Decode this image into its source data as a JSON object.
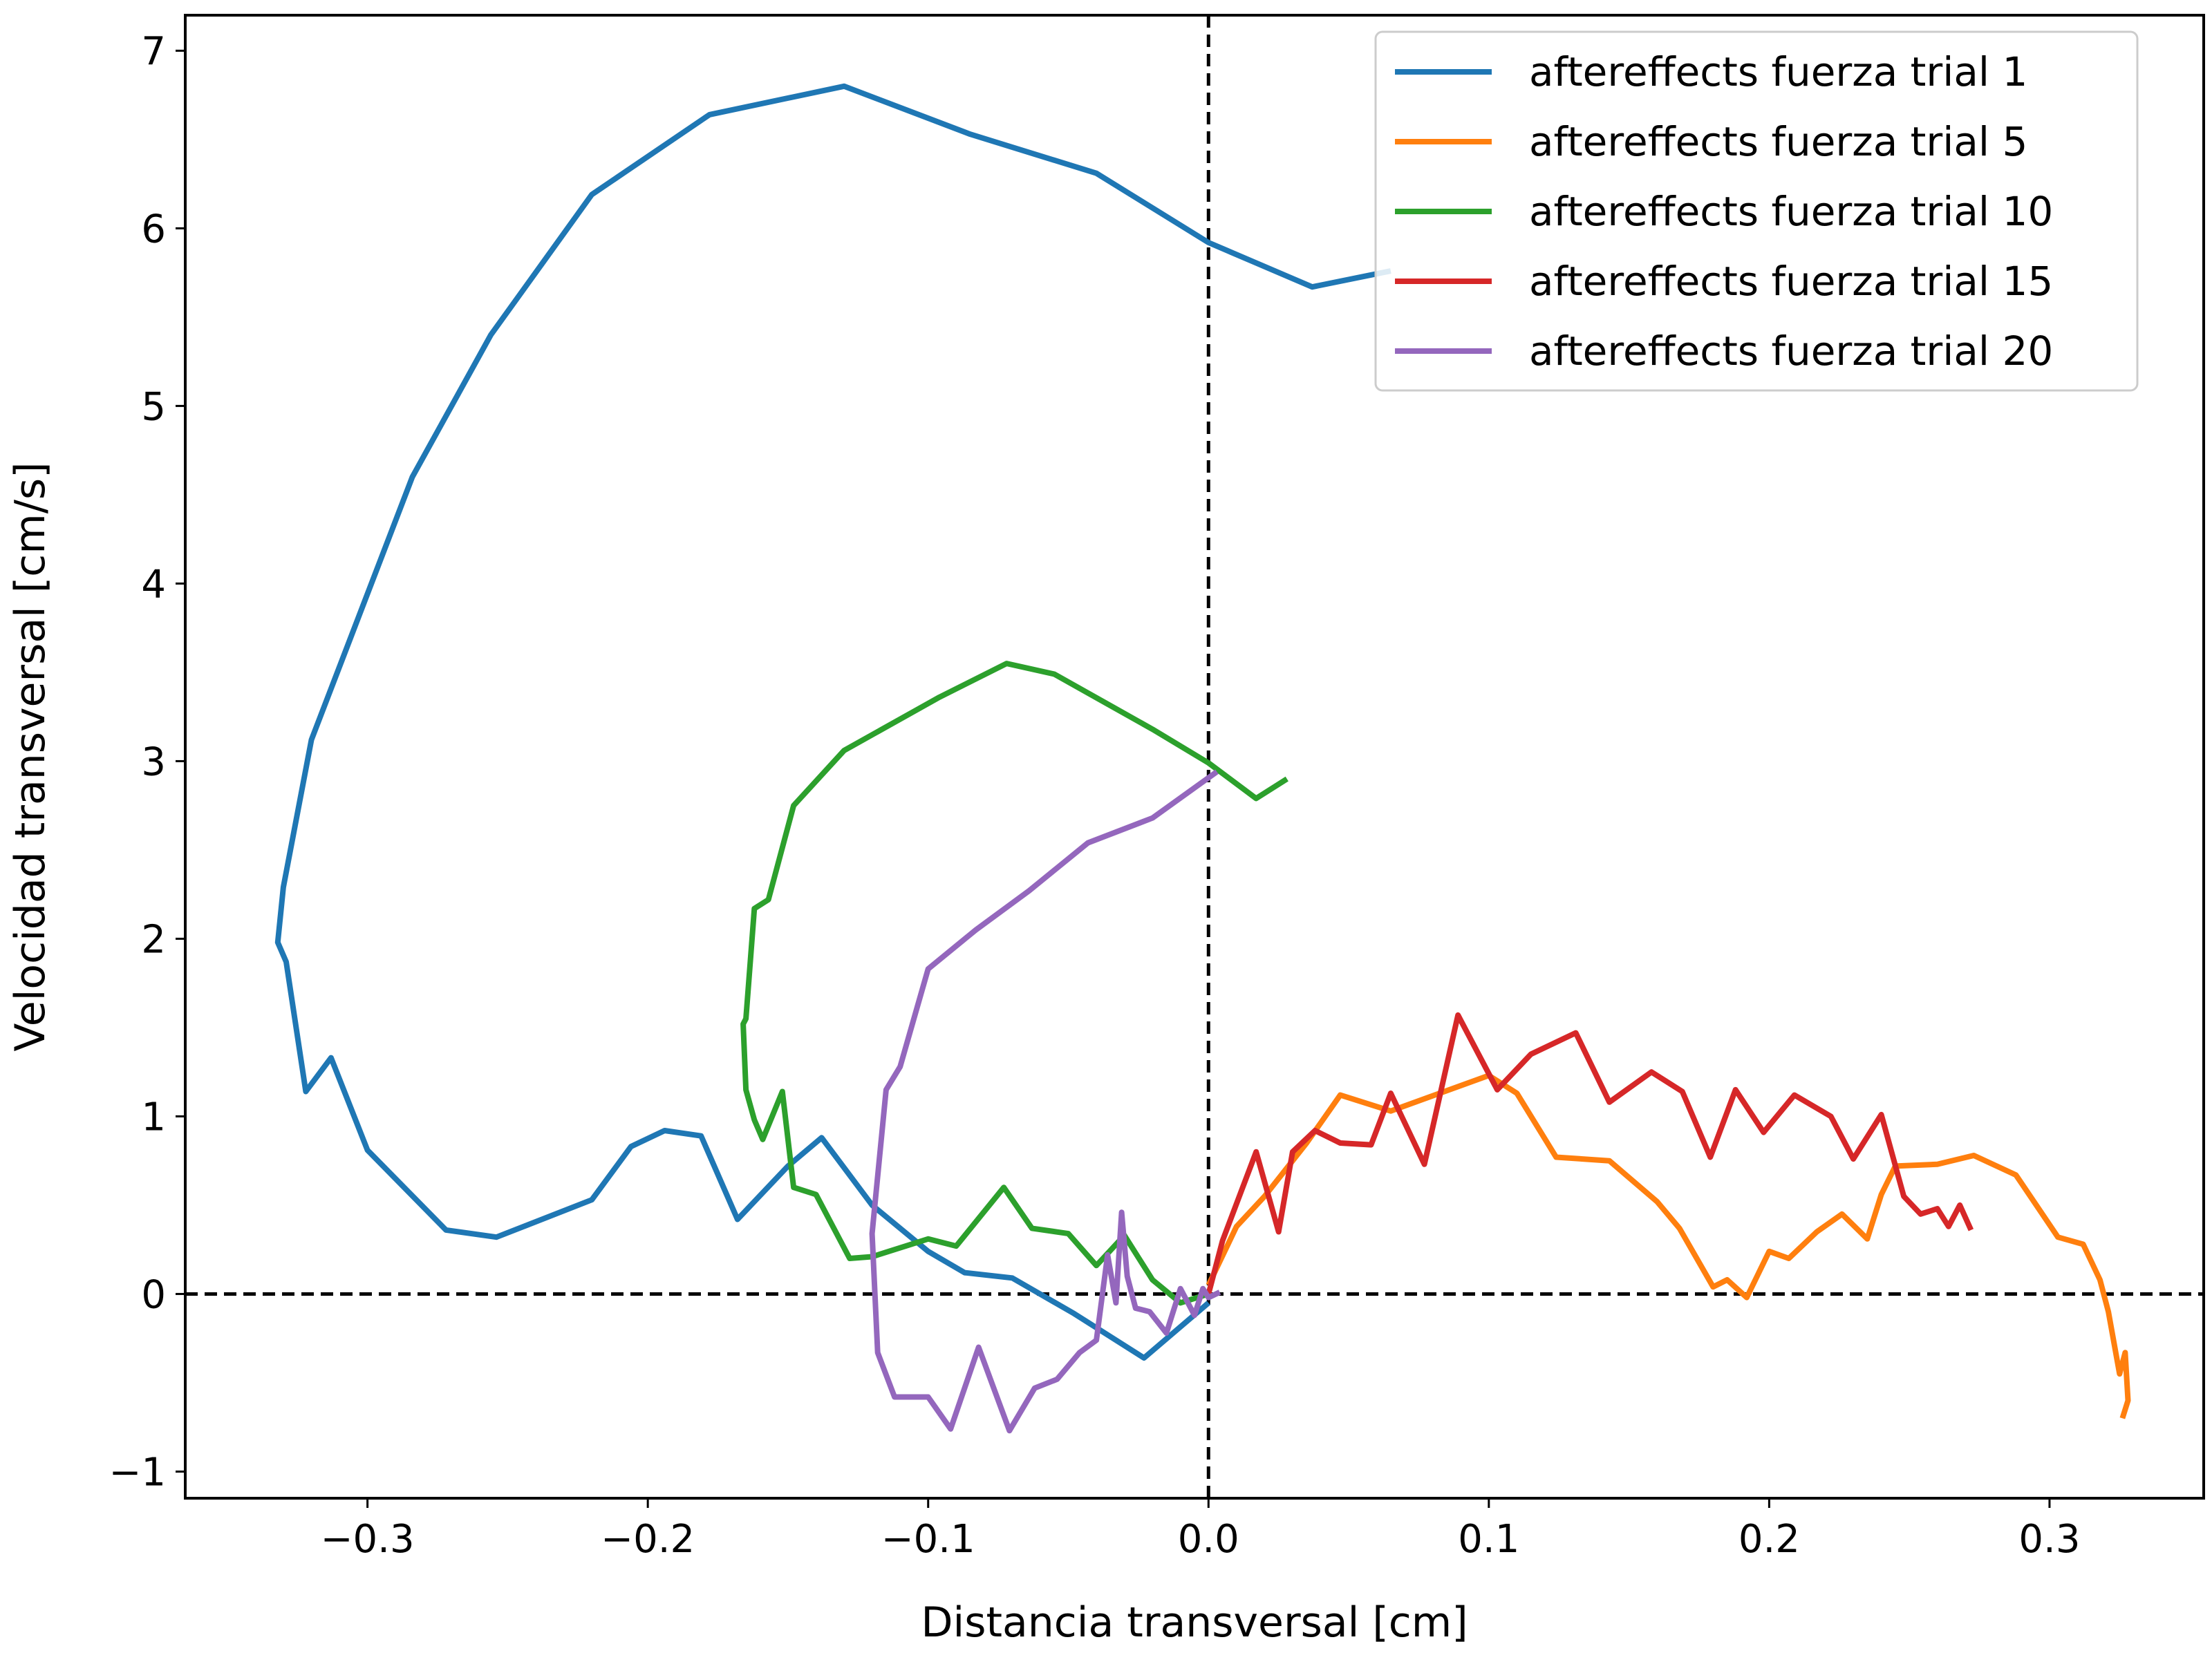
{
  "chart_data": {
    "type": "line",
    "title": "",
    "xlabel": "Distancia transversal [cm]",
    "ylabel": "Velocidad transversal [cm/s]",
    "xlim": [
      -0.365,
      0.355
    ],
    "ylim": [
      -1.15,
      7.2
    ],
    "xticks": [
      -0.3,
      -0.2,
      -0.1,
      0.0,
      0.1,
      0.2,
      0.3
    ],
    "xtick_labels": [
      "−0.3",
      "−0.2",
      "−0.1",
      "0.0",
      "0.1",
      "0.2",
      "0.3"
    ],
    "yticks": [
      -1,
      0,
      1,
      2,
      3,
      4,
      5,
      6,
      7
    ],
    "ytick_labels": [
      "−1",
      "0",
      "1",
      "2",
      "3",
      "4",
      "5",
      "6",
      "7"
    ],
    "grid": false,
    "legend_position": "top-right",
    "reference_lines": [
      {
        "orientation": "horizontal",
        "value": 0,
        "style": "dashed",
        "color": "#000000"
      },
      {
        "orientation": "vertical",
        "value": 0,
        "style": "dashed",
        "color": "#000000"
      }
    ],
    "series": [
      {
        "name": "aftereffects fuerza trial 1",
        "color": "#1f77b4",
        "points": [
          [
            0.065,
            5.76
          ],
          [
            0.037,
            5.67
          ],
          [
            0.0,
            5.92
          ],
          [
            -0.04,
            6.31
          ],
          [
            -0.085,
            6.53
          ],
          [
            -0.13,
            6.8
          ],
          [
            -0.178,
            6.64
          ],
          [
            -0.22,
            6.19
          ],
          [
            -0.256,
            5.4
          ],
          [
            -0.284,
            4.6
          ],
          [
            -0.32,
            3.12
          ],
          [
            -0.33,
            2.29
          ],
          [
            -0.332,
            1.98
          ],
          [
            -0.329,
            1.87
          ],
          [
            -0.322,
            1.14
          ],
          [
            -0.313,
            1.33
          ],
          [
            -0.3,
            0.81
          ],
          [
            -0.272,
            0.36
          ],
          [
            -0.254,
            0.32
          ],
          [
            -0.22,
            0.53
          ],
          [
            -0.206,
            0.83
          ],
          [
            -0.194,
            0.92
          ],
          [
            -0.181,
            0.89
          ],
          [
            -0.168,
            0.42
          ],
          [
            -0.15,
            0.72
          ],
          [
            -0.138,
            0.88
          ],
          [
            -0.12,
            0.5
          ],
          [
            -0.1,
            0.24
          ],
          [
            -0.087,
            0.12
          ],
          [
            -0.07,
            0.09
          ],
          [
            -0.048,
            -0.11
          ],
          [
            -0.023,
            -0.36
          ],
          [
            0.0,
            -0.05
          ]
        ]
      },
      {
        "name": "aftereffects fuerza trial 5",
        "color": "#ff7f0e",
        "points": [
          [
            0.0,
            0.05
          ],
          [
            0.01,
            0.38
          ],
          [
            0.02,
            0.55
          ],
          [
            0.035,
            0.85
          ],
          [
            0.047,
            1.12
          ],
          [
            0.065,
            1.03
          ],
          [
            0.1,
            1.23
          ],
          [
            0.11,
            1.13
          ],
          [
            0.124,
            0.77
          ],
          [
            0.143,
            0.75
          ],
          [
            0.16,
            0.52
          ],
          [
            0.168,
            0.37
          ],
          [
            0.18,
            0.04
          ],
          [
            0.185,
            0.08
          ],
          [
            0.192,
            -0.02
          ],
          [
            0.2,
            0.24
          ],
          [
            0.207,
            0.2
          ],
          [
            0.217,
            0.35
          ],
          [
            0.226,
            0.45
          ],
          [
            0.235,
            0.31
          ],
          [
            0.24,
            0.56
          ],
          [
            0.245,
            0.72
          ],
          [
            0.26,
            0.73
          ],
          [
            0.273,
            0.78
          ],
          [
            0.288,
            0.67
          ],
          [
            0.303,
            0.32
          ],
          [
            0.312,
            0.28
          ],
          [
            0.318,
            0.08
          ],
          [
            0.321,
            -0.1
          ],
          [
            0.325,
            -0.45
          ],
          [
            0.327,
            -0.33
          ],
          [
            0.328,
            -0.6
          ],
          [
            0.326,
            -0.7
          ]
        ]
      },
      {
        "name": "aftereffects fuerza trial 10",
        "color": "#2ca02c",
        "points": [
          [
            0.028,
            2.9
          ],
          [
            0.017,
            2.79
          ],
          [
            0.0,
            2.99
          ],
          [
            -0.02,
            3.18
          ],
          [
            -0.055,
            3.49
          ],
          [
            -0.072,
            3.55
          ],
          [
            -0.096,
            3.36
          ],
          [
            -0.13,
            3.06
          ],
          [
            -0.148,
            2.75
          ],
          [
            -0.157,
            2.22
          ],
          [
            -0.162,
            2.17
          ],
          [
            -0.165,
            1.55
          ],
          [
            -0.166,
            1.52
          ],
          [
            -0.165,
            1.15
          ],
          [
            -0.162,
            0.98
          ],
          [
            -0.159,
            0.87
          ],
          [
            -0.152,
            1.14
          ],
          [
            -0.148,
            0.6
          ],
          [
            -0.14,
            0.56
          ],
          [
            -0.128,
            0.2
          ],
          [
            -0.12,
            0.21
          ],
          [
            -0.1,
            0.31
          ],
          [
            -0.09,
            0.27
          ],
          [
            -0.073,
            0.6
          ],
          [
            -0.063,
            0.37
          ],
          [
            -0.05,
            0.34
          ],
          [
            -0.04,
            0.16
          ],
          [
            -0.03,
            0.33
          ],
          [
            -0.02,
            0.08
          ],
          [
            -0.01,
            -0.05
          ],
          [
            0.0,
            0.0
          ]
        ]
      },
      {
        "name": "aftereffects fuerza trial 15",
        "color": "#d62728",
        "points": [
          [
            0.0,
            0.0
          ],
          [
            0.005,
            0.3
          ],
          [
            0.017,
            0.8
          ],
          [
            0.025,
            0.35
          ],
          [
            0.03,
            0.8
          ],
          [
            0.038,
            0.92
          ],
          [
            0.047,
            0.85
          ],
          [
            0.058,
            0.84
          ],
          [
            0.065,
            1.13
          ],
          [
            0.077,
            0.73
          ],
          [
            0.089,
            1.57
          ],
          [
            0.103,
            1.15
          ],
          [
            0.115,
            1.35
          ],
          [
            0.131,
            1.47
          ],
          [
            0.143,
            1.08
          ],
          [
            0.158,
            1.25
          ],
          [
            0.169,
            1.14
          ],
          [
            0.179,
            0.77
          ],
          [
            0.188,
            1.15
          ],
          [
            0.198,
            0.91
          ],
          [
            0.209,
            1.12
          ],
          [
            0.222,
            1.0
          ],
          [
            0.23,
            0.76
          ],
          [
            0.24,
            1.01
          ],
          [
            0.248,
            0.55
          ],
          [
            0.254,
            0.45
          ],
          [
            0.26,
            0.48
          ],
          [
            0.264,
            0.38
          ],
          [
            0.268,
            0.5
          ],
          [
            0.272,
            0.36
          ]
        ]
      },
      {
        "name": "aftereffects fuerza trial 20",
        "color": "#9467bd",
        "points": [
          [
            0.003,
            2.94
          ],
          [
            -0.02,
            2.68
          ],
          [
            -0.043,
            2.54
          ],
          [
            -0.064,
            2.27
          ],
          [
            -0.083,
            2.05
          ],
          [
            -0.1,
            1.83
          ],
          [
            -0.11,
            1.28
          ],
          [
            -0.115,
            1.15
          ],
          [
            -0.12,
            0.34
          ],
          [
            -0.118,
            -0.33
          ],
          [
            -0.112,
            -0.58
          ],
          [
            -0.1,
            -0.58
          ],
          [
            -0.092,
            -0.76
          ],
          [
            -0.082,
            -0.3
          ],
          [
            -0.071,
            -0.77
          ],
          [
            -0.062,
            -0.53
          ],
          [
            -0.054,
            -0.48
          ],
          [
            -0.046,
            -0.33
          ],
          [
            -0.04,
            -0.26
          ],
          [
            -0.036,
            0.22
          ],
          [
            -0.033,
            -0.05
          ],
          [
            -0.031,
            0.46
          ],
          [
            -0.029,
            0.1
          ],
          [
            -0.026,
            -0.08
          ],
          [
            -0.021,
            -0.1
          ],
          [
            -0.015,
            -0.22
          ],
          [
            -0.01,
            0.03
          ],
          [
            -0.005,
            -0.12
          ],
          [
            -0.002,
            0.03
          ],
          [
            0.0,
            -0.02
          ],
          [
            0.004,
            0.01
          ]
        ]
      }
    ]
  }
}
